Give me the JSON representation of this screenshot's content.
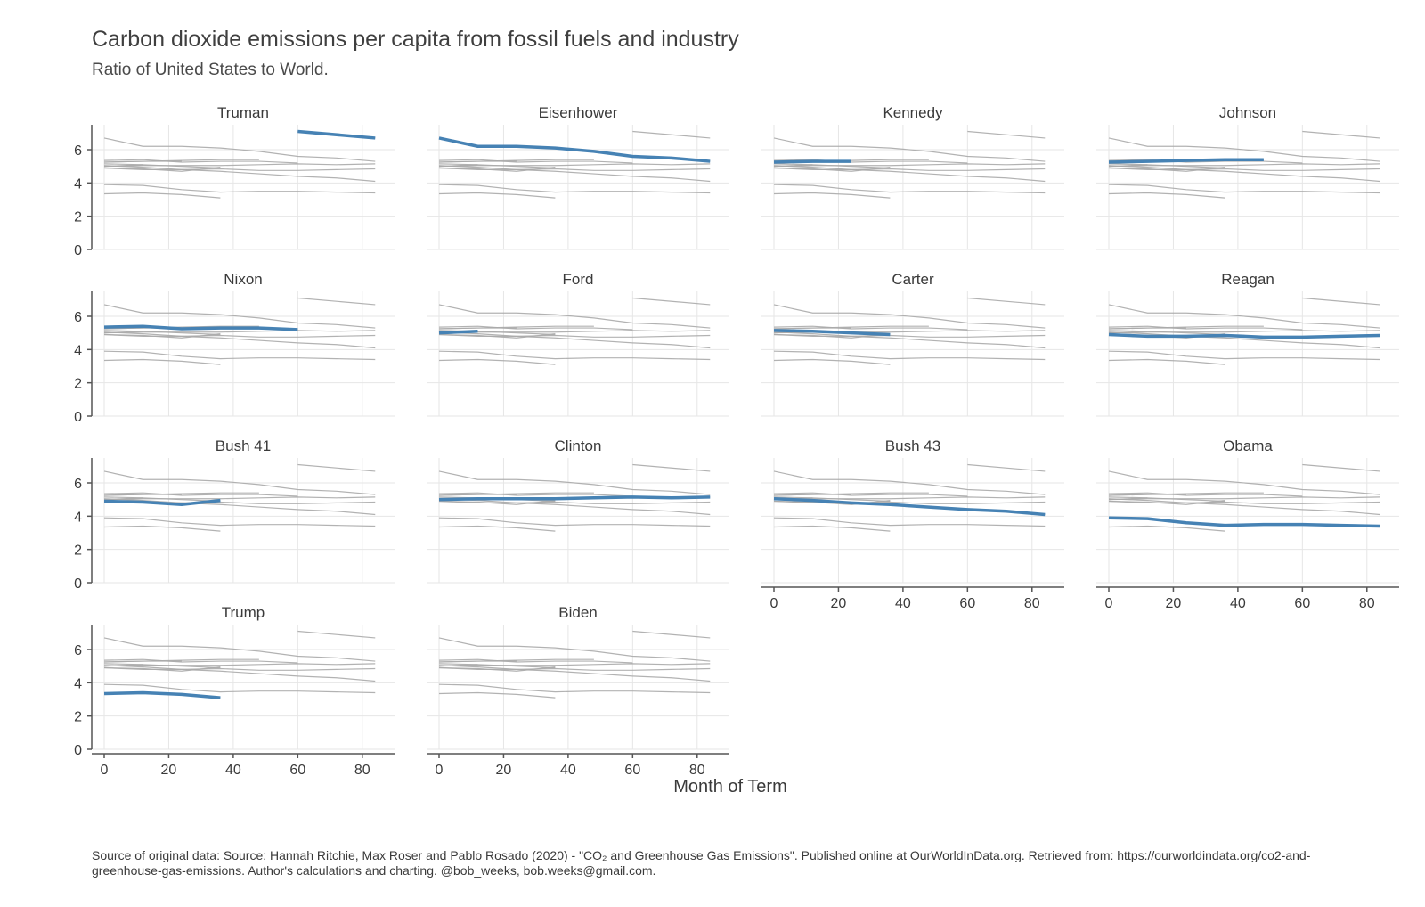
{
  "chart_data": {
    "type": "line",
    "title": "Carbon dioxide emissions per capita from fossil fuels and industry",
    "subtitle": "Ratio of United States to World.",
    "xlabel": "Month of Term",
    "ylabel": "",
    "xlim": [
      0,
      90
    ],
    "ylim": [
      0,
      7.5
    ],
    "x_ticks": [
      0,
      20,
      40,
      60,
      80
    ],
    "y_ticks": [
      0,
      2,
      4,
      6
    ],
    "grid": true,
    "highlight_color": "#4682b4",
    "background_color": "#aaaaaa",
    "caption": "Source of original data: Source: Hannah Ritchie, Max Roser and Pablo Rosado (2020) - \"CO₂ and Greenhouse Gas Emissions\". Published online at OurWorldInData.org. Retrieved from: https://ourworldindata.org/co2-and-greenhouse-gas-emissions. Author's calculations and charting. @bob_weeks, bob.weeks@gmail.com.",
    "panels": [
      "Truman",
      "Eisenhower",
      "Kennedy",
      "Johnson",
      "Nixon",
      "Ford",
      "Carter",
      "Reagan",
      "Bush 41",
      "Clinton",
      "Bush 43",
      "Obama",
      "Trump",
      "Biden"
    ],
    "series": [
      {
        "name": "Truman",
        "x": [
          60,
          84
        ],
        "y": [
          7.1,
          6.7
        ]
      },
      {
        "name": "Eisenhower",
        "x": [
          0,
          12,
          24,
          36,
          48,
          60,
          72,
          84
        ],
        "y": [
          6.7,
          6.2,
          6.2,
          6.1,
          5.9,
          5.6,
          5.5,
          5.3
        ]
      },
      {
        "name": "Kennedy",
        "x": [
          0,
          12,
          24
        ],
        "y": [
          5.25,
          5.3,
          5.3
        ]
      },
      {
        "name": "Johnson",
        "x": [
          0,
          12,
          24,
          36,
          48
        ],
        "y": [
          5.25,
          5.3,
          5.35,
          5.4,
          5.4
        ]
      },
      {
        "name": "Nixon",
        "x": [
          0,
          12,
          24,
          36,
          48,
          60
        ],
        "y": [
          5.35,
          5.4,
          5.25,
          5.3,
          5.3,
          5.2
        ]
      },
      {
        "name": "Ford",
        "x": [
          0,
          12
        ],
        "y": [
          5.0,
          5.1
        ]
      },
      {
        "name": "Carter",
        "x": [
          0,
          12,
          24,
          36
        ],
        "y": [
          5.15,
          5.1,
          5.0,
          4.9
        ]
      },
      {
        "name": "Reagan",
        "x": [
          0,
          12,
          24,
          36,
          48,
          60,
          72,
          84
        ],
        "y": [
          4.9,
          4.8,
          4.8,
          4.85,
          4.75,
          4.75,
          4.8,
          4.85
        ]
      },
      {
        "name": "Bush 41",
        "x": [
          0,
          12,
          24,
          36
        ],
        "y": [
          4.9,
          4.85,
          4.7,
          4.95
        ]
      },
      {
        "name": "Clinton",
        "x": [
          0,
          12,
          24,
          36,
          48,
          60,
          72,
          84
        ],
        "y": [
          5.0,
          5.05,
          5.05,
          5.05,
          5.1,
          5.15,
          5.1,
          5.15
        ]
      },
      {
        "name": "Bush 43",
        "x": [
          0,
          12,
          24,
          36,
          48,
          60,
          72,
          84
        ],
        "y": [
          5.05,
          4.95,
          4.8,
          4.7,
          4.55,
          4.4,
          4.3,
          4.1
        ]
      },
      {
        "name": "Obama",
        "x": [
          0,
          12,
          24,
          36,
          48,
          60,
          72,
          84
        ],
        "y": [
          3.9,
          3.85,
          3.6,
          3.45,
          3.5,
          3.5,
          3.45,
          3.4
        ]
      },
      {
        "name": "Trump",
        "x": [
          0,
          12,
          24,
          36
        ],
        "y": [
          3.35,
          3.4,
          3.3,
          3.1
        ]
      },
      {
        "name": "Biden",
        "x": [],
        "y": []
      }
    ]
  }
}
